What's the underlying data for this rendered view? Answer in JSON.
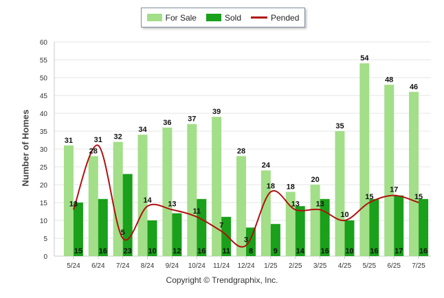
{
  "legend": {
    "for_sale_label": "For Sale",
    "sold_label": "Sold",
    "pended_label": "Pended"
  },
  "copyright": "Copyright © Trendgraphix, Inc.",
  "colors": {
    "for_sale": "#a3de88",
    "sold": "#1aa01a",
    "pended": "#b01010",
    "grid": "#e6e6e6"
  },
  "chart_data": {
    "type": "bar",
    "title": "",
    "xlabel": "",
    "ylabel": "Number of Homes",
    "ylim": [
      0,
      60
    ],
    "yticks": [
      0,
      5,
      10,
      15,
      20,
      25,
      30,
      35,
      40,
      45,
      50,
      55,
      60
    ],
    "grid": true,
    "legend_position": "top-center",
    "categories": [
      "5/24",
      "6/24",
      "7/24",
      "8/24",
      "9/24",
      "10/24",
      "11/24",
      "12/24",
      "1/25",
      "2/25",
      "3/25",
      "4/25",
      "5/25",
      "6/25",
      "7/25"
    ],
    "series": [
      {
        "name": "For Sale",
        "type": "bar",
        "values": [
          31,
          28,
          32,
          34,
          36,
          37,
          39,
          28,
          24,
          18,
          20,
          35,
          54,
          48,
          46
        ]
      },
      {
        "name": "Sold",
        "type": "bar",
        "values": [
          15,
          16,
          23,
          10,
          12,
          16,
          11,
          8,
          9,
          14,
          16,
          10,
          16,
          17,
          16
        ]
      },
      {
        "name": "Pended",
        "type": "line",
        "values": [
          13,
          31,
          5,
          14,
          13,
          11,
          7,
          3,
          18,
          13,
          13,
          10,
          15,
          17,
          15
        ]
      }
    ]
  }
}
